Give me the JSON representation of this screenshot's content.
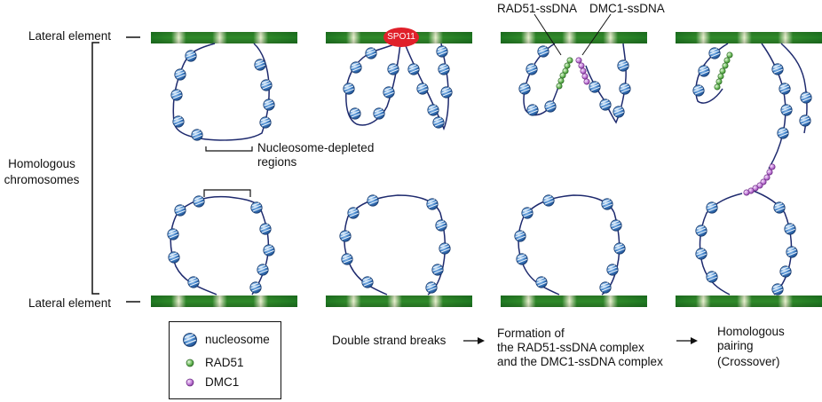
{
  "labels": {
    "lateral_element_top": "Lateral element",
    "lateral_element_bottom": "Lateral element",
    "homologous_line1": "Homologous",
    "homologous_line2": "chromosomes",
    "depleted_line1": "Nucleosome-depleted",
    "depleted_line2": "regions",
    "spo11": "SPO11",
    "rad51_ssdna": "RAD51-ssDNA",
    "dmc1_ssdna": "DMC1-ssDNA"
  },
  "steps": {
    "dsb": "Double strand breaks",
    "formation_line1": "Formation of",
    "formation_line2": "the RAD51-ssDNA complex",
    "formation_line3": "and the DMC1-ssDNA complex",
    "pairing_line1": "Homologous",
    "pairing_line2": "pairing",
    "pairing_line3": "(Crossover)"
  },
  "legend": {
    "nucleosome": "nucleosome",
    "rad51": "RAD51",
    "dmc1": "DMC1"
  },
  "colors": {
    "lateral_element": "#2f8a2a",
    "dna_strand": "#1e2a6e",
    "nucleosome": "#3f7fc4",
    "spo11": "#e0202a",
    "rad51": "#5cb04e",
    "dmc1": "#b65fcf"
  },
  "icons": {
    "nucleosome": "nucleosome-icon",
    "rad51": "rad51-dot-icon",
    "dmc1": "dmc1-dot-icon"
  }
}
